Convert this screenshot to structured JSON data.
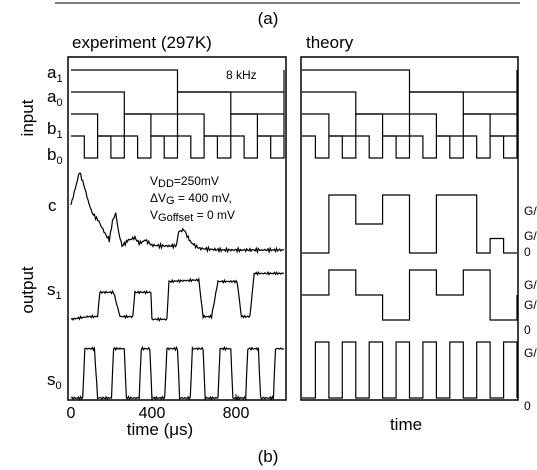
{
  "caption_top": "(a)",
  "caption_bottom": "(b)",
  "colors": {
    "line": "#000000",
    "background": "#ffffff"
  },
  "chart_data": [
    {
      "type": "line",
      "title": "experiment (297K)",
      "xlabel": "time (μs)",
      "xlim": [
        0,
        1000
      ],
      "xticks": [
        "0",
        "400",
        "800"
      ],
      "annotation_freq": "8 kHz",
      "annotations": {
        "vdd": {
          "main": "V",
          "sub": "DD",
          "rest": "=250mV"
        },
        "dvg": {
          "main": "ΔV",
          "sub": "G",
          "rest": " = 400 mV,"
        },
        "vgoff": {
          "main": "V",
          "sub": "Goffset",
          "rest": " = 0 mV"
        }
      },
      "group_labels": [
        "input",
        "output"
      ],
      "series": [
        {
          "name": "a1",
          "label_main": "a",
          "label_sub": "1",
          "kind": "square",
          "period_us": 1000,
          "values": [
            [
              0,
              1
            ],
            [
              500,
              0
            ],
            [
              1000,
              1
            ]
          ]
        },
        {
          "name": "a0",
          "label_main": "a",
          "label_sub": "0",
          "kind": "square",
          "period_us": 500,
          "values": [
            [
              0,
              1
            ],
            [
              250,
              0
            ],
            [
              500,
              1
            ]
          ]
        },
        {
          "name": "b1",
          "label_main": "b",
          "label_sub": "1",
          "kind": "square",
          "period_us": 250,
          "values": [
            [
              0,
              1
            ],
            [
              125,
              0
            ],
            [
              250,
              1
            ]
          ]
        },
        {
          "name": "b0",
          "label_main": "b",
          "label_sub": "0",
          "kind": "square",
          "period_us": 125,
          "values": [
            [
              0,
              1
            ],
            [
              62.5,
              0
            ],
            [
              125,
              1
            ]
          ]
        },
        {
          "name": "c",
          "label_main": "c",
          "label_sub": "",
          "kind": "measured",
          "values": [
            [
              0,
              0.55
            ],
            [
              40,
              0.95
            ],
            [
              60,
              0.8
            ],
            [
              80,
              0.6
            ],
            [
              100,
              0.45
            ],
            [
              130,
              0.35
            ],
            [
              160,
              0.2
            ],
            [
              180,
              0.12
            ],
            [
              195,
              0.35
            ],
            [
              210,
              0.45
            ],
            [
              225,
              0.2
            ],
            [
              240,
              0.05
            ],
            [
              270,
              0.12
            ],
            [
              300,
              0.15
            ],
            [
              320,
              0.08
            ],
            [
              350,
              0.12
            ],
            [
              380,
              0.06
            ],
            [
              420,
              0.05
            ],
            [
              460,
              0.05
            ],
            [
              495,
              0.05
            ],
            [
              505,
              0.22
            ],
            [
              530,
              0.25
            ],
            [
              560,
              0.1
            ],
            [
              600,
              0.02
            ],
            [
              700,
              0.0
            ],
            [
              800,
              0.0
            ],
            [
              900,
              0.0
            ],
            [
              1000,
              0.0
            ]
          ]
        },
        {
          "name": "s1",
          "label_main": "s",
          "label_sub": "1",
          "kind": "measured",
          "values": [
            [
              0,
              0.05
            ],
            [
              80,
              0.1
            ],
            [
              125,
              0.1
            ],
            [
              135,
              0.55
            ],
            [
              200,
              0.55
            ],
            [
              230,
              0.1
            ],
            [
              290,
              0.1
            ],
            [
              300,
              0.55
            ],
            [
              375,
              0.55
            ],
            [
              380,
              0.05
            ],
            [
              450,
              0.05
            ],
            [
              460,
              0.75
            ],
            [
              600,
              0.78
            ],
            [
              620,
              0.1
            ],
            [
              660,
              0.1
            ],
            [
              690,
              0.75
            ],
            [
              780,
              0.75
            ],
            [
              800,
              0.1
            ],
            [
              840,
              0.1
            ],
            [
              860,
              0.9
            ],
            [
              960,
              0.9
            ],
            [
              1000,
              0.9
            ]
          ]
        },
        {
          "name": "s0",
          "label_main": "s",
          "label_sub": "0",
          "kind": "measured",
          "values": [
            [
              0,
              0.0
            ],
            [
              55,
              0.0
            ],
            [
              65,
              0.85
            ],
            [
              110,
              0.85
            ],
            [
              125,
              0.0
            ],
            [
              190,
              0.0
            ],
            [
              200,
              0.85
            ],
            [
              250,
              0.85
            ],
            [
              260,
              0.0
            ],
            [
              320,
              0.0
            ],
            [
              330,
              0.85
            ],
            [
              370,
              0.85
            ],
            [
              380,
              0.0
            ],
            [
              440,
              0.0
            ],
            [
              450,
              0.85
            ],
            [
              500,
              0.85
            ],
            [
              510,
              0.0
            ],
            [
              560,
              0.0
            ],
            [
              570,
              0.85
            ],
            [
              620,
              0.85
            ],
            [
              630,
              0.0
            ],
            [
              690,
              0.0
            ],
            [
              700,
              0.85
            ],
            [
              750,
              0.85
            ],
            [
              760,
              0.0
            ],
            [
              820,
              0.0
            ],
            [
              830,
              0.85
            ],
            [
              880,
              0.85
            ],
            [
              890,
              0.0
            ],
            [
              950,
              0.0
            ],
            [
              960,
              0.85
            ],
            [
              1000,
              0.85
            ]
          ]
        }
      ]
    },
    {
      "type": "line",
      "title": "theory",
      "xlabel": "time",
      "right_level_labels": {
        "c": [
          "G/",
          "G/",
          "0"
        ],
        "s1": [
          "G/",
          "G/",
          "0"
        ],
        "s0": [
          "G/",
          "0"
        ]
      },
      "series": [
        {
          "name": "a1",
          "values": [
            [
              0,
              1
            ],
            [
              0.5,
              0
            ],
            [
              1,
              1
            ]
          ]
        },
        {
          "name": "a0",
          "values": [
            [
              0,
              1
            ],
            [
              0.25,
              0
            ],
            [
              0.5,
              1
            ],
            [
              0.75,
              0
            ],
            [
              1,
              1
            ]
          ]
        },
        {
          "name": "b1",
          "values": [
            [
              0,
              1
            ],
            [
              0.125,
              0
            ],
            [
              0.25,
              1
            ]
          ]
        },
        {
          "name": "b0",
          "values": [
            [
              0,
              1
            ],
            [
              0.0625,
              0
            ],
            [
              0.125,
              1
            ]
          ]
        },
        {
          "name": "c",
          "values": [
            [
              0,
              0
            ],
            [
              0.125,
              1
            ],
            [
              0.25,
              0.5
            ],
            [
              0.375,
              1
            ],
            [
              0.5,
              0
            ],
            [
              0.625,
              1
            ],
            [
              0.8125,
              0
            ],
            [
              0.875,
              0.25
            ],
            [
              0.9375,
              0
            ],
            [
              1,
              0
            ]
          ]
        },
        {
          "name": "s1",
          "values": [
            [
              0,
              0.5
            ],
            [
              0.125,
              1
            ],
            [
              0.25,
              0.5
            ],
            [
              0.375,
              0
            ],
            [
              0.5,
              1
            ],
            [
              0.625,
              0.5
            ],
            [
              0.75,
              1
            ],
            [
              0.875,
              0
            ],
            [
              1,
              0.5
            ]
          ]
        },
        {
          "name": "s0",
          "values": [
            [
              0,
              0
            ],
            [
              0.0625,
              1
            ],
            [
              0.125,
              0
            ],
            [
              0.1875,
              1
            ],
            [
              0.25,
              0
            ],
            [
              0.3125,
              1
            ],
            [
              0.375,
              0
            ],
            [
              0.4375,
              1
            ],
            [
              0.5,
              0
            ],
            [
              0.5625,
              1
            ],
            [
              0.625,
              0
            ],
            [
              0.6875,
              1
            ],
            [
              0.75,
              0
            ],
            [
              0.8125,
              1
            ],
            [
              0.875,
              0
            ],
            [
              0.9375,
              1
            ],
            [
              1,
              0
            ]
          ]
        }
      ]
    }
  ]
}
